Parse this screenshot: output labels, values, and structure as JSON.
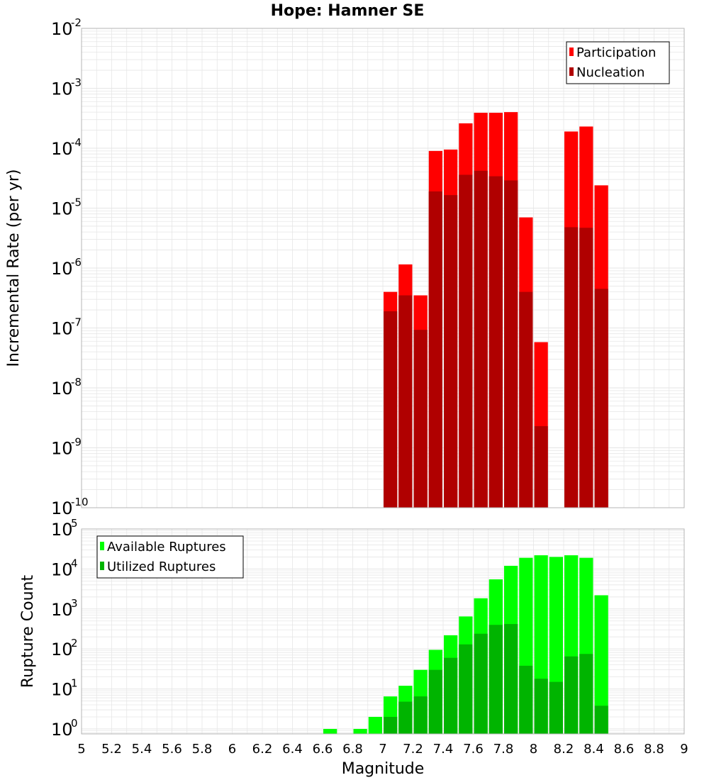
{
  "title": "Hope: Hamner SE",
  "colors": {
    "participation": "#ff0000",
    "nucleation": "#b00000",
    "available": "#00ff00",
    "utilized": "#00b400",
    "grid": "#e6e6e6",
    "frame": "#b4b4b4"
  },
  "chart_data": [
    {
      "type": "bar",
      "title": "Hope: Hamner SE",
      "ylabel": "Incremental Rate (per yr)",
      "xlabel": "",
      "yscale": "log",
      "ylim": [
        1e-10,
        0.01
      ],
      "xlim": [
        5,
        9
      ],
      "y_ticks": [
        {
          "base": "10",
          "exp": "-10",
          "value": 1e-10
        },
        {
          "base": "10",
          "exp": "-9",
          "value": 1e-09
        },
        {
          "base": "10",
          "exp": "-8",
          "value": 1e-08
        },
        {
          "base": "10",
          "exp": "-7",
          "value": 1e-07
        },
        {
          "base": "10",
          "exp": "-6",
          "value": 1e-06
        },
        {
          "base": "10",
          "exp": "-5",
          "value": 1e-05
        },
        {
          "base": "10",
          "exp": "-4",
          "value": 0.0001
        },
        {
          "base": "10",
          "exp": "-3",
          "value": 0.001
        },
        {
          "base": "10",
          "exp": "-2",
          "value": 0.01
        }
      ],
      "legend": {
        "position": "top-right",
        "entries": [
          "Participation",
          "Nucleation"
        ]
      },
      "series": [
        {
          "name": "Participation",
          "x": [
            7.0,
            7.1,
            7.2,
            7.3,
            7.4,
            7.5,
            7.6,
            7.7,
            7.8,
            7.9,
            8.0,
            8.2,
            8.3,
            8.4
          ],
          "values": [
            4e-07,
            1.15e-06,
            3.5e-07,
            9e-05,
            9.5e-05,
            0.00026,
            0.00039,
            0.00039,
            0.0004,
            7e-06,
            5.8e-08,
            0.00019,
            0.00023,
            2.4e-05
          ]
        },
        {
          "name": "Nucleation",
          "x": [
            7.0,
            7.1,
            7.2,
            7.3,
            7.4,
            7.5,
            7.6,
            7.7,
            7.8,
            7.9,
            8.0,
            8.2,
            8.3,
            8.4
          ],
          "values": [
            1.9e-07,
            3.5e-07,
            9.3e-08,
            1.9e-05,
            1.65e-05,
            3.6e-05,
            4.2e-05,
            3.4e-05,
            2.9e-05,
            4e-07,
            2.3e-09,
            4.8e-06,
            4.7e-06,
            4.5e-07
          ]
        }
      ]
    },
    {
      "type": "bar",
      "ylabel": "Rupture Count",
      "xlabel": "Magnitude",
      "yscale": "log",
      "ylim": [
        0.75,
        100000.0
      ],
      "xlim": [
        5,
        9
      ],
      "y_ticks": [
        {
          "base": "10",
          "exp": "0",
          "value": 1
        },
        {
          "base": "10",
          "exp": "1",
          "value": 10
        },
        {
          "base": "10",
          "exp": "2",
          "value": 100
        },
        {
          "base": "10",
          "exp": "3",
          "value": 1000
        },
        {
          "base": "10",
          "exp": "4",
          "value": 10000
        },
        {
          "base": "10",
          "exp": "5",
          "value": 100000
        }
      ],
      "x_ticks": [
        "5",
        "5.2",
        "5.4",
        "5.6",
        "5.8",
        "6",
        "6.2",
        "6.4",
        "6.6",
        "6.8",
        "7",
        "7.2",
        "7.4",
        "7.6",
        "7.8",
        "8",
        "8.2",
        "8.4",
        "8.6",
        "8.8",
        "9"
      ],
      "legend": {
        "position": "top-left",
        "entries": [
          "Available Ruptures",
          "Utilized Ruptures"
        ]
      },
      "series": [
        {
          "name": "Available Ruptures",
          "x": [
            6.6,
            6.8,
            6.9,
            7.0,
            7.1,
            7.2,
            7.3,
            7.4,
            7.5,
            7.6,
            7.7,
            7.8,
            7.9,
            8.0,
            8.1,
            8.2,
            8.3,
            8.4
          ],
          "values": [
            1,
            1,
            2,
            6.5,
            12,
            30,
            95,
            220,
            650,
            1850,
            5500,
            12000,
            19000,
            22000,
            20000,
            22000,
            19000,
            2200
          ]
        },
        {
          "name": "Utilized Ruptures",
          "x": [
            7.0,
            7.1,
            7.2,
            7.3,
            7.4,
            7.5,
            7.6,
            7.7,
            7.8,
            7.9,
            8.0,
            8.1,
            8.2,
            8.3,
            8.4
          ],
          "values": [
            2,
            4.8,
            6.5,
            30,
            60,
            130,
            240,
            400,
            420,
            38,
            18,
            15,
            65,
            75,
            3.8
          ]
        }
      ]
    }
  ]
}
